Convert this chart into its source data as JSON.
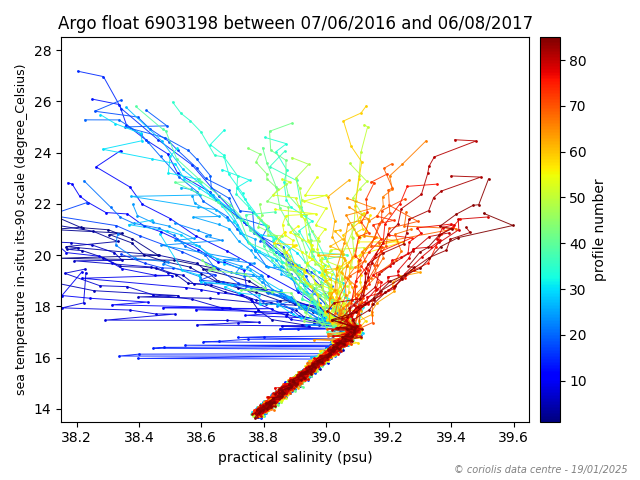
{
  "title": "Argo float 6903198 between 07/06/2016 and 06/08/2017",
  "xlabel": "practical salinity (psu)",
  "ylabel": "sea temperature in-situ its-90 scale (degree_Celsius)",
  "colorbar_label": "profile number",
  "copyright": "© coriolis data centre - 19/01/2025",
  "xlim": [
    38.15,
    39.65
  ],
  "ylim": [
    13.5,
    28.5
  ],
  "xticks": [
    38.2,
    38.4,
    38.6,
    38.8,
    39.0,
    39.2,
    39.4,
    39.6
  ],
  "yticks": [
    14,
    16,
    18,
    20,
    22,
    24,
    26,
    28
  ],
  "colorbar_ticks": [
    10,
    20,
    30,
    40,
    50,
    60,
    70,
    80
  ],
  "n_profiles": 85,
  "vmin": 1,
  "vmax": 85,
  "cmap": "jet",
  "seed": 42,
  "figsize": [
    6.4,
    4.8
  ],
  "dpi": 100
}
